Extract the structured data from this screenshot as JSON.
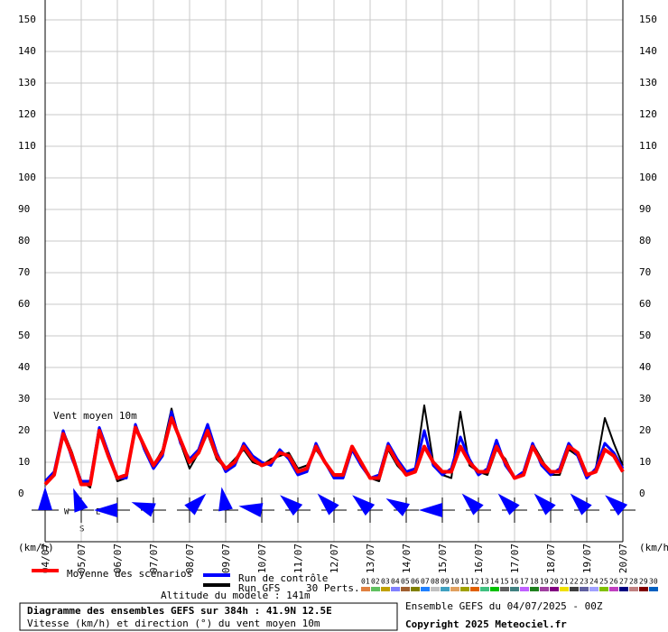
{
  "chart_data": {
    "type": "line",
    "title": "Diagramme des ensembles GEFS sur 384h : 41.9N 12.5E",
    "subtitle": "Vitesse (km/h) et direction (°) du vent moyen 10m",
    "annotation": "Vent moyen 10m",
    "altitude": "Altitude du modele : 141m",
    "run_info": "Ensemble GEFS du 04/07/2025 - 00Z",
    "copyright": "Copyright 2025 Meteociel.fr",
    "perturbation_count": "30 Perts.",
    "y_label": "(km/h)",
    "compass": [
      "W",
      "E",
      "S"
    ],
    "categories": [
      "04/07",
      null,
      null,
      null,
      "05/07",
      null,
      null,
      null,
      "06/07",
      null,
      null,
      null,
      "07/07",
      null,
      null,
      null,
      "08/07",
      null,
      null,
      null,
      "09/07",
      null,
      null,
      null,
      "10/07",
      null,
      null,
      null,
      "11/07",
      null,
      null,
      null,
      "12/07",
      null,
      null,
      null,
      "13/07",
      null,
      null,
      null,
      "14/07",
      null,
      null,
      null,
      "15/07",
      null,
      null,
      null,
      "16/07",
      null,
      null,
      null,
      "17/07",
      null,
      null,
      null,
      "18/07",
      null,
      null,
      null,
      "19/07",
      null,
      null,
      null,
      "20/07"
    ],
    "series": [
      {
        "name": "Run GFS",
        "color": "#000000",
        "width": 2,
        "values": [
          4,
          6,
          20,
          13,
          4,
          2,
          21,
          12,
          4,
          5,
          22,
          14,
          9,
          14,
          27,
          16,
          8,
          13,
          19,
          11,
          8,
          11,
          14,
          10,
          9,
          11,
          12,
          13,
          8,
          9,
          14,
          10,
          6,
          5,
          14,
          9,
          5,
          4,
          14,
          9,
          6,
          8,
          28,
          10,
          6,
          5,
          26,
          9,
          7,
          6,
          14,
          11,
          5,
          6,
          16,
          11,
          6,
          6,
          14,
          12,
          5,
          8,
          24,
          16,
          9
        ]
      },
      {
        "name": "Run de contrôle",
        "color": "#0000ff",
        "width": 3,
        "values": [
          4,
          7,
          20,
          11,
          4,
          4,
          21,
          13,
          5,
          5,
          22,
          14,
          8,
          12,
          26,
          16,
          11,
          14,
          22,
          13,
          7,
          9,
          16,
          12,
          10,
          9,
          14,
          11,
          6,
          7,
          16,
          10,
          5,
          5,
          14,
          9,
          5,
          6,
          16,
          11,
          7,
          8,
          20,
          9,
          6,
          8,
          18,
          11,
          6,
          8,
          17,
          9,
          5,
          7,
          16,
          9,
          6,
          8,
          16,
          12,
          5,
          8,
          16,
          13,
          8
        ]
      },
      {
        "name": "Moyenne des scénarios",
        "color": "#ff0000",
        "width": 4,
        "values": [
          3,
          6,
          19,
          12,
          3,
          3,
          20,
          12,
          5,
          6,
          21,
          15,
          9,
          13,
          24,
          17,
          10,
          13,
          20,
          12,
          8,
          10,
          15,
          11,
          9,
          10,
          13,
          12,
          7,
          8,
          15,
          10,
          6,
          6,
          15,
          10,
          5,
          5,
          15,
          10,
          6,
          7,
          15,
          10,
          7,
          7,
          15,
          10,
          7,
          7,
          15,
          10,
          5,
          6,
          15,
          10,
          7,
          7,
          15,
          13,
          6,
          7,
          14,
          12,
          7
        ]
      }
    ],
    "wind_direction": [
      180,
      200,
      270,
      250,
      135,
      190,
      260,
      230,
      225,
      230,
      240,
      270,
      225,
      225,
      225,
      225,
      230
    ],
    "direction_color": "#0000ff",
    "perturbations": [
      {
        "name": "01",
        "color": "#e08040"
      },
      {
        "name": "02",
        "color": "#60c060"
      },
      {
        "name": "03",
        "color": "#c0a000"
      },
      {
        "name": "04",
        "color": "#8080ff"
      },
      {
        "name": "05",
        "color": "#a06030"
      },
      {
        "name": "06",
        "color": "#808000"
      },
      {
        "name": "07",
        "color": "#2080ff"
      },
      {
        "name": "08",
        "color": "#c0c0c0"
      },
      {
        "name": "09",
        "color": "#40a0c0"
      },
      {
        "name": "10",
        "color": "#e0a060"
      },
      {
        "name": "11",
        "color": "#a0a000"
      },
      {
        "name": "12",
        "color": "#e06000"
      },
      {
        "name": "13",
        "color": "#40c080"
      },
      {
        "name": "14",
        "color": "#00c000"
      },
      {
        "name": "15",
        "color": "#606060"
      },
      {
        "name": "16",
        "color": "#408080"
      },
      {
        "name": "17",
        "color": "#c060ff"
      },
      {
        "name": "18",
        "color": "#208020"
      },
      {
        "name": "19",
        "color": "#a040a0"
      },
      {
        "name": "20",
        "color": "#800080"
      },
      {
        "name": "21",
        "color": "#f0e000"
      },
      {
        "name": "22",
        "color": "#404040"
      },
      {
        "name": "23",
        "color": "#6060a0"
      },
      {
        "name": "24",
        "color": "#a0a0ff"
      },
      {
        "name": "25",
        "color": "#80c000"
      },
      {
        "name": "26",
        "color": "#c040c0"
      },
      {
        "name": "27",
        "color": "#000080"
      },
      {
        "name": "28",
        "color": "#c08080"
      },
      {
        "name": "29",
        "color": "#800000"
      },
      {
        "name": "30",
        "color": "#0060c0"
      }
    ],
    "ylim": [
      0,
      150
    ],
    "yticks": [
      0,
      10,
      20,
      30,
      40,
      50,
      60,
      70,
      80,
      90,
      100,
      110,
      120,
      130,
      140,
      150
    ],
    "grid": true
  }
}
